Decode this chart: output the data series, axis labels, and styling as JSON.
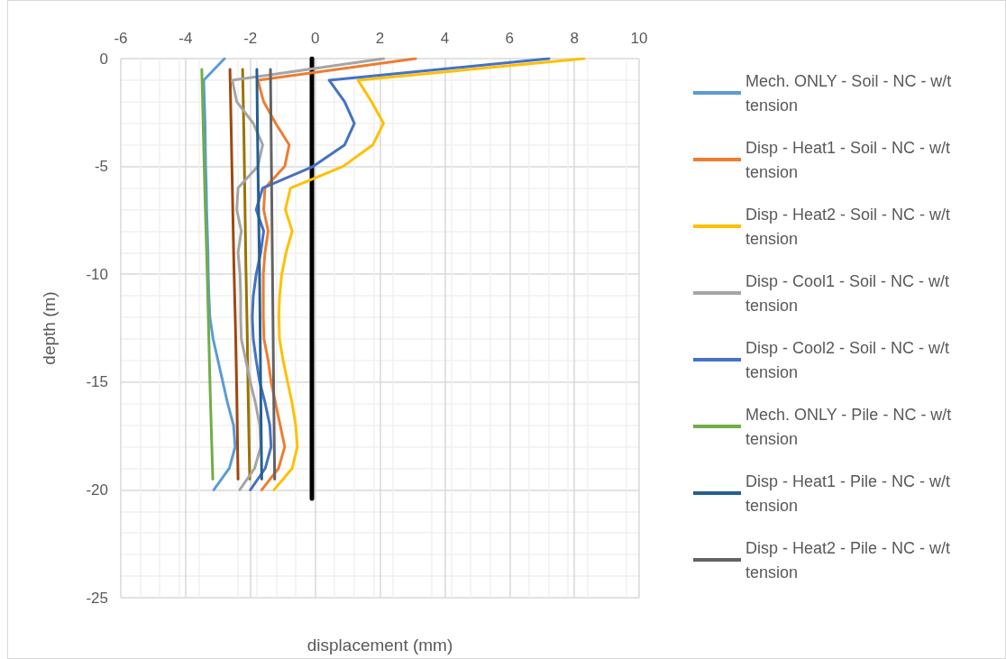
{
  "chart_data": {
    "type": "line",
    "xlabel": "displacement (mm)",
    "ylabel": "depth (m)",
    "xlim": [
      -6,
      10
    ],
    "xticks": [
      -6,
      -4,
      -2,
      0,
      2,
      4,
      6,
      8,
      10
    ],
    "ylim": [
      -25,
      0
    ],
    "yticks": [
      -25,
      -20,
      -15,
      -10,
      -5,
      0
    ],
    "grid": true,
    "legend": "right",
    "marker": "none",
    "line_style": "solid",
    "series": [
      {
        "name": "Mech. ONLY - Soil - NC - w/t tension",
        "color": "#5b9bd5",
        "x": [
          -2.8,
          -3.44,
          -3.42,
          -3.4,
          -3.39,
          -3.38,
          -3.36,
          -3.35,
          -3.33,
          -3.31,
          -3.3,
          -3.28,
          -3.25,
          -3.15,
          -3.0,
          -2.85,
          -2.7,
          -2.52,
          -2.47,
          -2.65,
          -3.13
        ],
        "values": [
          0,
          -1,
          -2,
          -3,
          -4,
          -5,
          -6,
          -7,
          -8,
          -9,
          -10,
          -11,
          -12,
          -13,
          -14,
          -15,
          -16,
          -17,
          -18,
          -19,
          -20
        ]
      },
      {
        "name": "Disp - Heat1 - Soil - NC - w/t tension",
        "color": "#ed7d31",
        "x": [
          3.1,
          -1.77,
          -1.59,
          -1.22,
          -0.8,
          -0.94,
          -1.55,
          -1.59,
          -1.45,
          -1.55,
          -1.6,
          -1.6,
          -1.6,
          -1.58,
          -1.45,
          -1.36,
          -1.22,
          -1.08,
          -0.94,
          -1.13,
          -1.65
        ],
        "values": [
          0,
          -1,
          -2,
          -3,
          -4,
          -5,
          -6,
          -7,
          -8,
          -9,
          -10,
          -11,
          -12,
          -13,
          -14,
          -15,
          -16,
          -17,
          -18,
          -19,
          -20
        ]
      },
      {
        "name": "Disp - Heat2 - Soil - NC - w/t tension",
        "color": "#ffc000",
        "x": [
          8.3,
          1.32,
          1.74,
          2.11,
          1.78,
          0.86,
          -0.76,
          -0.92,
          -0.71,
          -0.9,
          -1.03,
          -1.1,
          -1.12,
          -1.1,
          -0.99,
          -0.85,
          -0.71,
          -0.6,
          -0.55,
          -0.71,
          -1.27
        ],
        "values": [
          0,
          -1,
          -2,
          -3,
          -4,
          -5,
          -6,
          -7,
          -8,
          -9,
          -10,
          -11,
          -12,
          -13,
          -14,
          -15,
          -16,
          -17,
          -18,
          -19,
          -20
        ]
      },
      {
        "name": "Disp - Cool1 - Soil - NC - w/t tension",
        "color": "#a5a5a5",
        "x": [
          2.11,
          -2.56,
          -2.42,
          -1.91,
          -1.62,
          -1.77,
          -2.38,
          -2.42,
          -2.28,
          -2.38,
          -2.32,
          -2.3,
          -2.3,
          -2.28,
          -2.14,
          -2.0,
          -1.84,
          -1.71,
          -1.68,
          -1.87,
          -2.33
        ],
        "values": [
          0,
          -1,
          -2,
          -3,
          -4,
          -5,
          -6,
          -7,
          -8,
          -9,
          -10,
          -11,
          -12,
          -13,
          -14,
          -15,
          -16,
          -17,
          -18,
          -19,
          -20
        ]
      },
      {
        "name": "Disp - Cool2 - Soil - NC - w/t tension",
        "color": "#4472c4",
        "x": [
          7.22,
          0.43,
          0.91,
          1.21,
          0.91,
          -0.06,
          -1.62,
          -1.82,
          -1.59,
          -1.68,
          -1.82,
          -1.91,
          -1.94,
          -1.91,
          -1.82,
          -1.71,
          -1.54,
          -1.4,
          -1.36,
          -1.54,
          -2.0
        ],
        "values": [
          0,
          -1,
          -2,
          -3,
          -4,
          -5,
          -6,
          -7,
          -8,
          -9,
          -10,
          -11,
          -12,
          -13,
          -14,
          -15,
          -16,
          -17,
          -18,
          -19,
          -20
        ]
      },
      {
        "name": "Mech. ONLY - Pile - NC - w/t tension",
        "color": "#70ad47",
        "x": [
          -3.5,
          -3.45,
          -3.4,
          -3.34,
          -3.29,
          -3.24,
          -3.16
        ],
        "values": [
          -0.5,
          -3.5,
          -6.5,
          -9.5,
          -12.5,
          -15.5,
          -19.5
        ]
      },
      {
        "name": "Disp - Heat1 - Pile - NC - w/t tension",
        "color": "#255e91",
        "x": [
          -1.8,
          -1.78,
          -1.75,
          -1.72,
          -1.7,
          -1.68,
          -1.65
        ],
        "values": [
          -0.5,
          -3.5,
          -6.5,
          -9.5,
          -12.5,
          -15.5,
          -19.5
        ]
      },
      {
        "name": "Disp - Heat2 - Pile - NC - w/t tension",
        "color": "#636363",
        "x": [
          -1.38,
          -1.36,
          -1.34,
          -1.32,
          -1.3,
          -1.28,
          -1.25
        ],
        "values": [
          -0.5,
          -3.5,
          -6.5,
          -9.5,
          -12.5,
          -15.5,
          -19.5
        ]
      },
      {
        "color": "#9e480e",
        "x": [
          -2.63,
          -2.59,
          -2.55,
          -2.51,
          -2.46,
          -2.42,
          -2.38
        ],
        "values": [
          -0.5,
          -3.5,
          -6.5,
          -9.5,
          -12.5,
          -15.5,
          -19.5
        ]
      },
      {
        "color": "#997300",
        "x": [
          -2.24,
          -2.2,
          -2.17,
          -2.14,
          -2.1,
          -2.07,
          -2.02
        ],
        "values": [
          -0.5,
          -3.5,
          -6.5,
          -9.5,
          -12.5,
          -15.5,
          -19.5
        ]
      },
      {
        "color": "#000000",
        "x": [
          -0.1,
          -0.1
        ],
        "values": [
          0,
          -20.4
        ]
      }
    ]
  }
}
